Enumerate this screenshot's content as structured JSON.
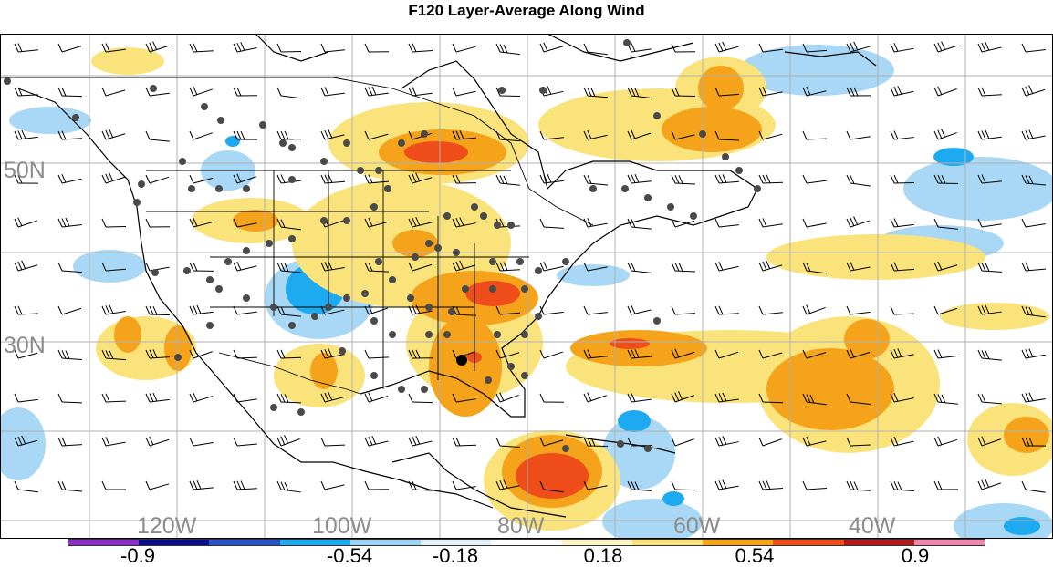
{
  "title": "F120 Layer-Average Along Wind",
  "map": {
    "latitude_labels": [
      "50N",
      "30N"
    ],
    "longitude_labels": [
      "120W",
      "100W",
      "80W",
      "60W",
      "40W"
    ],
    "label_color": "#8c8c8c",
    "gridline_color": "#b0b0b0",
    "land_outline_color": "#000000",
    "observation_marker_color": "#4a4a4a",
    "highlight_marker_color": "#000000"
  },
  "colorbar": {
    "colors": [
      "#8b2fc9",
      "#0a108c",
      "#2850c8",
      "#1eaaf0",
      "#9fd4f4",
      "#e2f2fb",
      "#ffffff",
      "#fdf3c4",
      "#fbe37c",
      "#f5a31a",
      "#ef4e1a",
      "#b01a1a",
      "#ee86ae"
    ],
    "tick_labels": [
      "-0.9",
      "-0.54",
      "-0.18",
      "0.18",
      "0.54",
      "0.9"
    ]
  }
}
